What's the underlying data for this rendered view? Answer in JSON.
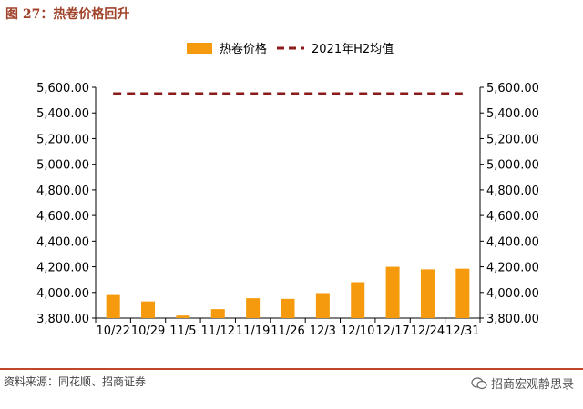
{
  "figure_title": "图 27：热卷价格回升",
  "source_text": "资料来源：同花顺、招商证券",
  "watermark": "招商宏观静思录",
  "colors": {
    "bar": "#f59a0c",
    "avg_line": "#8b1a1a",
    "accent": "#a0442c"
  },
  "chart_data": {
    "type": "bar",
    "categories": [
      "10/22",
      "10/29",
      "11/5",
      "11/12",
      "11/19",
      "11/26",
      "12/3",
      "12/10",
      "12/17",
      "12/24",
      "12/31"
    ],
    "series": [
      {
        "name": "热卷价格",
        "type": "bar",
        "values": [
          3980,
          3930,
          3820,
          3870,
          3955,
          3950,
          3995,
          4080,
          4200,
          4180,
          4185
        ]
      },
      {
        "name": "2021年H2均值",
        "type": "line",
        "style": "dashed",
        "values": [
          5550,
          5550,
          5550,
          5550,
          5550,
          5550,
          5550,
          5550,
          5550,
          5550,
          5550
        ]
      }
    ],
    "ylim": [
      3800,
      5600
    ],
    "yticks": [
      "3,800.00",
      "4,000.00",
      "4,200.00",
      "4,400.00",
      "4,600.00",
      "4,800.00",
      "5,000.00",
      "5,200.00",
      "5,400.00",
      "5,600.00"
    ],
    "ytick_values": [
      3800,
      4000,
      4200,
      4400,
      4600,
      4800,
      5000,
      5200,
      5400,
      5600
    ],
    "secondary_yticks": [
      "3,800.00",
      "4,000.00",
      "4,200.00",
      "4,400.00",
      "4,600.00",
      "4,800.00",
      "5,000.00",
      "5,200.00",
      "5,400.00",
      "5,600.00"
    ],
    "legend_position": "top-center",
    "grid": false
  }
}
